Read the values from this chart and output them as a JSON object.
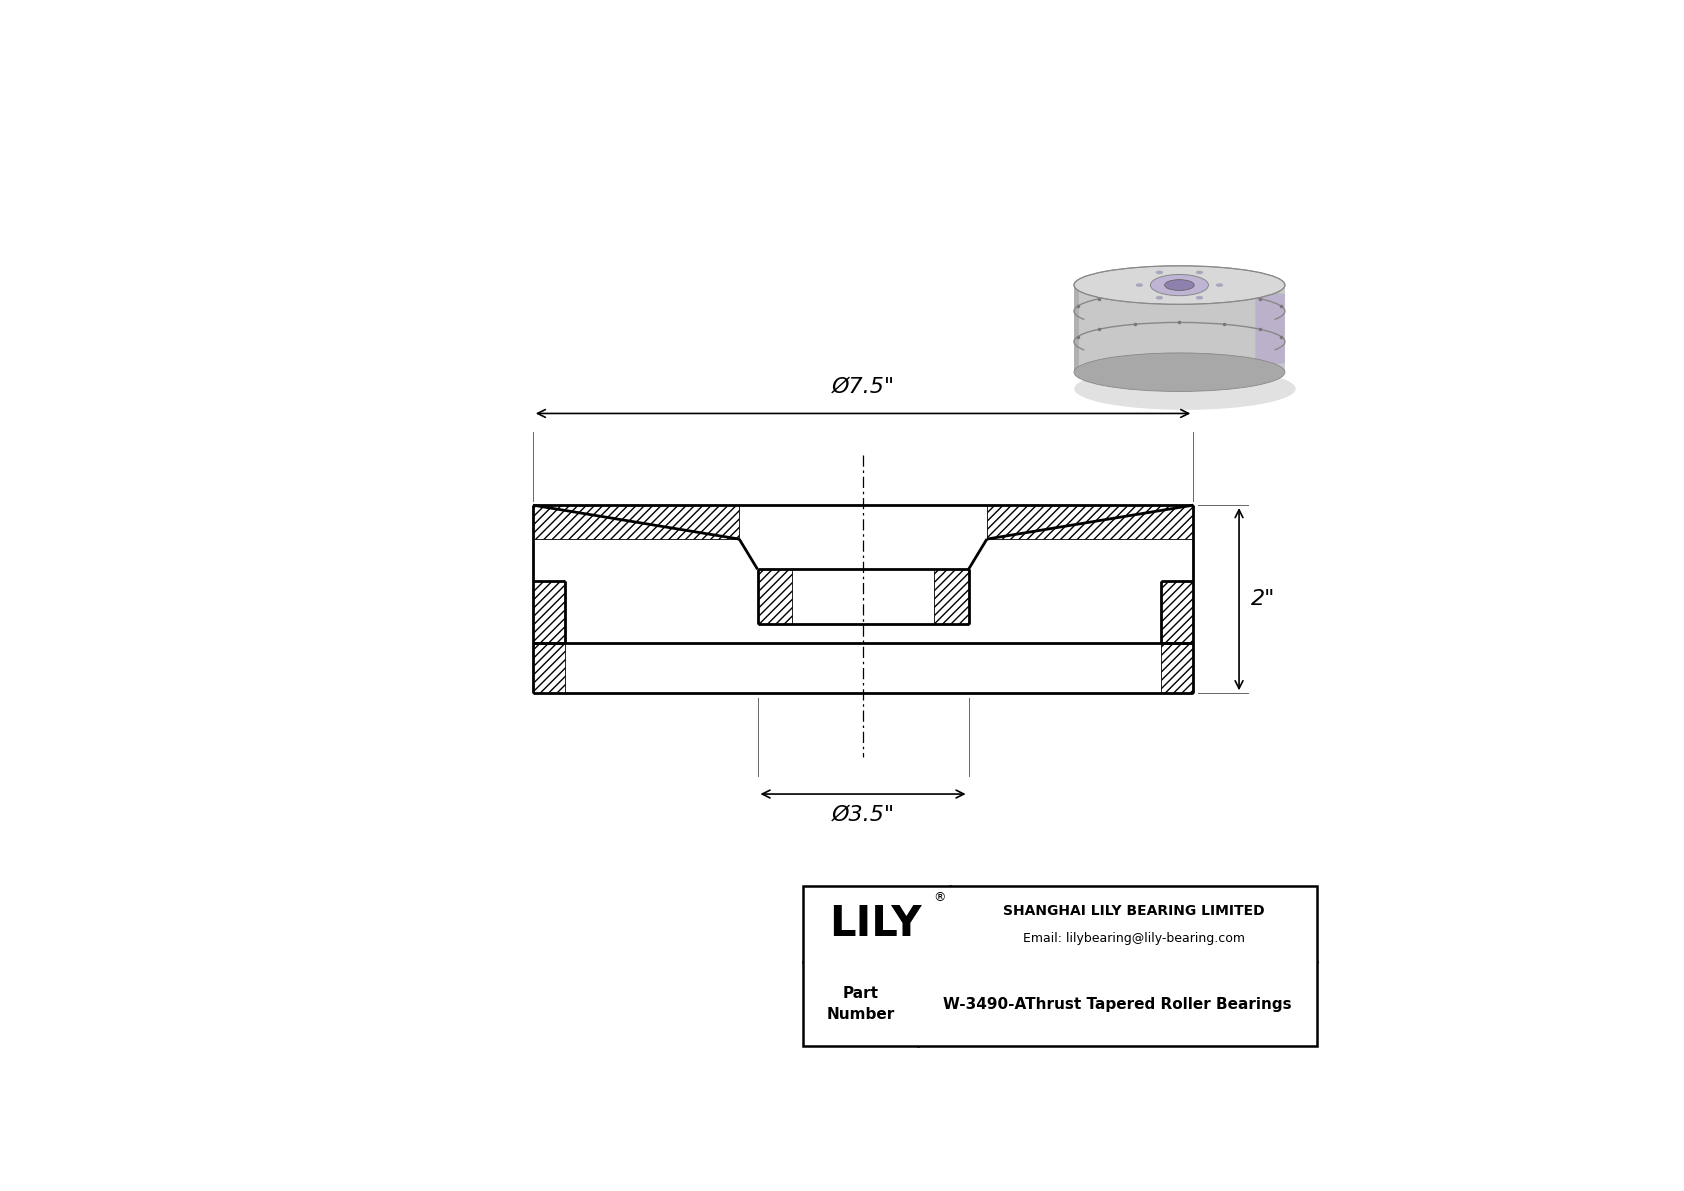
{
  "bg_color": "#ffffff",
  "line_color": "#000000",
  "company": "SHANGHAI LILY BEARING LIMITED",
  "email": "Email: lilybearing@lily-bearing.com",
  "part_label": "Part\nNumber",
  "part_number": "W-3490-AThrust Tapered Roller Bearings",
  "dim_outer": "Ø7.5\"",
  "dim_inner": "Ø3.5\"",
  "dim_height": "2\""
}
